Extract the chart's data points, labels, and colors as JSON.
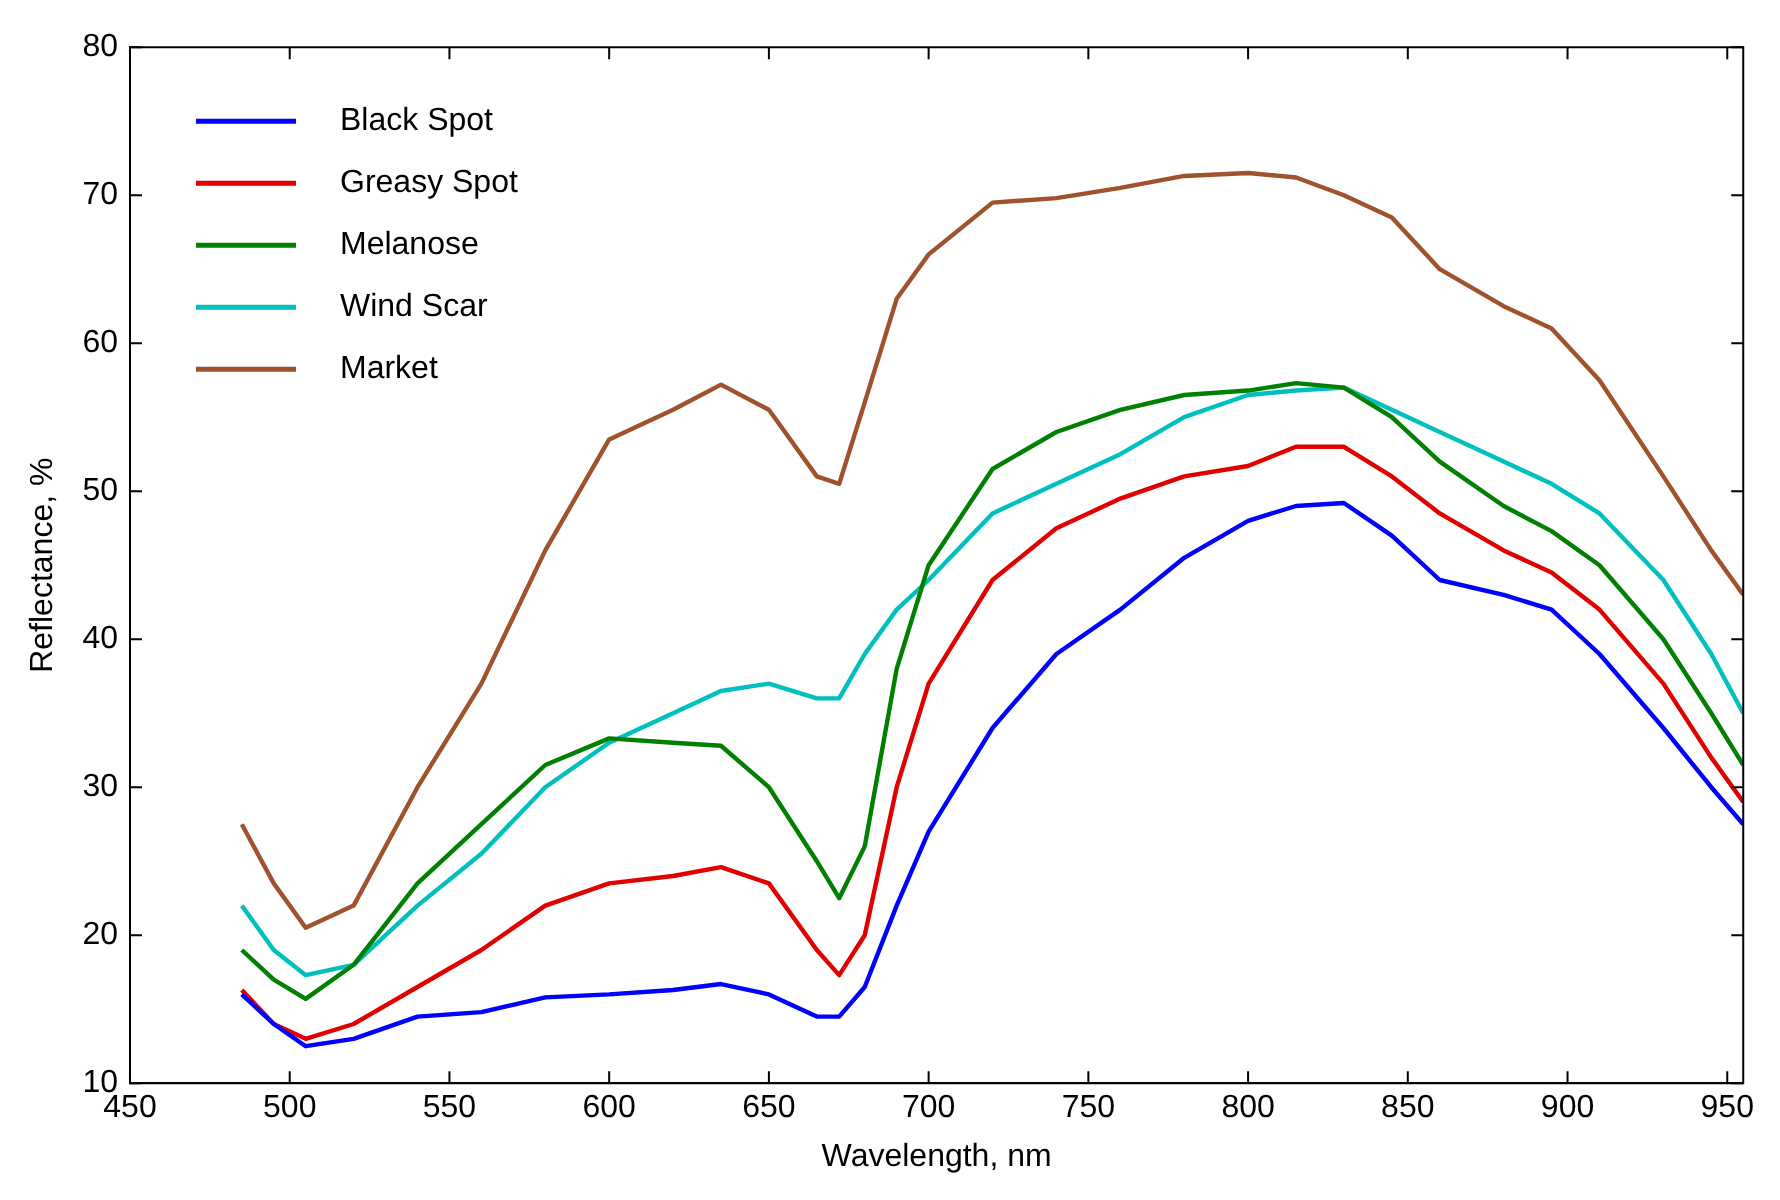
{
  "chart_data": {
    "type": "line",
    "xlabel": "Wavelength, nm",
    "ylabel": "Reflectance, %",
    "xlim": [
      450,
      955
    ],
    "xticks": [
      450,
      500,
      550,
      600,
      650,
      700,
      750,
      800,
      850,
      900,
      950
    ],
    "ylim": [
      10,
      80
    ],
    "yticks": [
      10,
      20,
      30,
      40,
      50,
      60,
      70,
      80
    ],
    "grid": false,
    "legend": "top left",
    "marker": "none",
    "line_style": "solid",
    "x": [
      485,
      495,
      505,
      520,
      540,
      560,
      580,
      600,
      620,
      635,
      650,
      665,
      672,
      680,
      690,
      700,
      720,
      740,
      760,
      780,
      800,
      815,
      830,
      845,
      860,
      880,
      895,
      910,
      930,
      945,
      955
    ],
    "series": [
      {
        "name": "Black Spot",
        "color": "#0000ff",
        "values": [
          16,
          14,
          12.5,
          13,
          14.5,
          14.8,
          15.8,
          16,
          16.3,
          16.7,
          16,
          14.5,
          14.5,
          16.5,
          22,
          27,
          34,
          39,
          42,
          45.5,
          48,
          49,
          49.2,
          47,
          44,
          43,
          42,
          39,
          34,
          30,
          27.5
        ]
      },
      {
        "name": "Greasy Spot",
        "color": "#e00000",
        "values": [
          16.3,
          14,
          13,
          14,
          16.5,
          19,
          22,
          23.5,
          24,
          24.6,
          23.5,
          19,
          17.3,
          20,
          30,
          37,
          44,
          47.5,
          49.5,
          51,
          51.7,
          53,
          53,
          51,
          48.5,
          46,
          44.5,
          42,
          37,
          32,
          29
        ]
      },
      {
        "name": "Melanose",
        "color": "#008000",
        "values": [
          19,
          17,
          15.7,
          18,
          23.5,
          27.5,
          31.5,
          33.3,
          33,
          32.8,
          30,
          25,
          22.5,
          26,
          38,
          45,
          51.5,
          54,
          55.5,
          56.5,
          56.8,
          57.3,
          57,
          55,
          52,
          49,
          47.3,
          45,
          40,
          35,
          31.5
        ]
      },
      {
        "name": "Wind Scar",
        "color": "#00bfbf",
        "values": [
          22,
          19,
          17.3,
          18,
          22,
          25.5,
          30,
          33,
          35,
          36.5,
          37,
          36,
          36,
          39,
          42,
          44,
          48.5,
          50.5,
          52.5,
          55,
          56.5,
          56.8,
          57,
          55.5,
          54,
          52,
          50.5,
          48.5,
          44,
          39,
          35
        ]
      },
      {
        "name": "Market",
        "color": "#a0522d",
        "values": [
          27.5,
          23.5,
          20.5,
          22,
          30,
          37,
          46,
          53.5,
          55.5,
          57.2,
          55.5,
          51,
          50.5,
          56,
          63,
          66,
          69.5,
          69.8,
          70.5,
          71.3,
          71.5,
          71.2,
          70,
          68.5,
          65,
          62.5,
          61,
          57.5,
          51,
          46,
          43
        ]
      }
    ]
  }
}
